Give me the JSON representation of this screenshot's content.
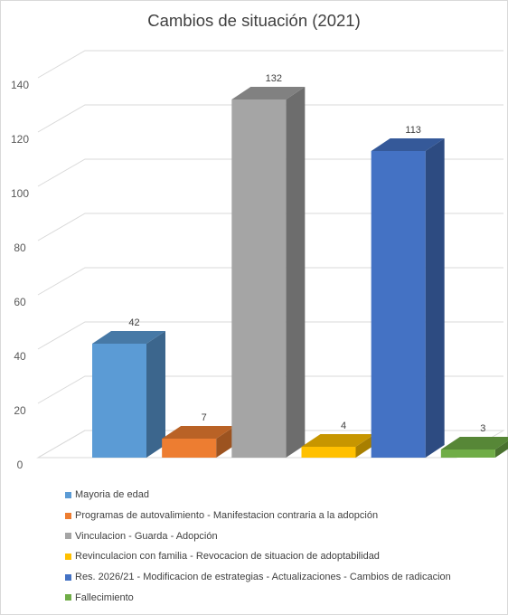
{
  "chart_data": {
    "type": "bar",
    "title": "Cambios de situación (2021)",
    "categories": [
      "Mayoria de edad",
      "Programas de autovalimiento - Manifestacion contraria a la adopción",
      "Vinculacion - Guarda - Adopción",
      "Revinculacion con familia - Revocacion de situacion de adoptabilidad",
      "Res. 2026/21 - Modificacion de estrategias - Actualizaciones - Cambios de radicacion",
      "Fallecimiento"
    ],
    "values": [
      42,
      7,
      132,
      4,
      113,
      3
    ],
    "colors": [
      "#5b9bd5",
      "#ed7d31",
      "#a5a5a5",
      "#ffc000",
      "#4472c4",
      "#70ad47"
    ],
    "ylim": [
      0,
      140
    ],
    "yticks": [
      0,
      20,
      40,
      60,
      80,
      100,
      120,
      140
    ],
    "grid": true,
    "projection": "3d",
    "legend_position": "bottom"
  }
}
